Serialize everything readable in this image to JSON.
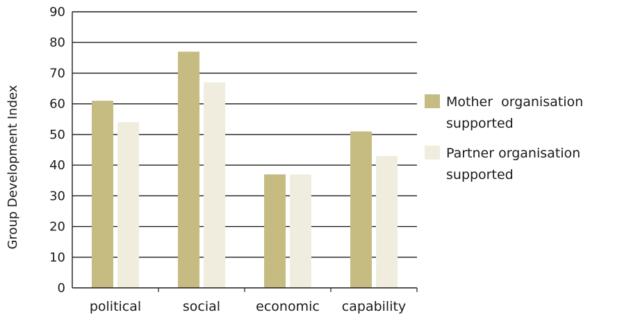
{
  "chart_data": {
    "type": "bar",
    "title": "",
    "xlabel": "",
    "ylabel": "Group Development Index",
    "ylim": [
      0,
      90
    ],
    "yticks": [
      "0",
      "10",
      "20",
      "30",
      "40",
      "50",
      "60",
      "70",
      "80",
      "90"
    ],
    "categories": [
      "political",
      "social",
      "economic",
      "capability"
    ],
    "grid": true,
    "legend_position": "right",
    "series": [
      {
        "name_lines": [
          "Mother  organisation",
          "supported"
        ],
        "color": "#c6bb80",
        "values": [
          61,
          77,
          37,
          51
        ]
      },
      {
        "name_lines": [
          "Partner organisation",
          "supported"
        ],
        "color": "#f0edde",
        "values": [
          54,
          67,
          37,
          43
        ]
      }
    ]
  }
}
